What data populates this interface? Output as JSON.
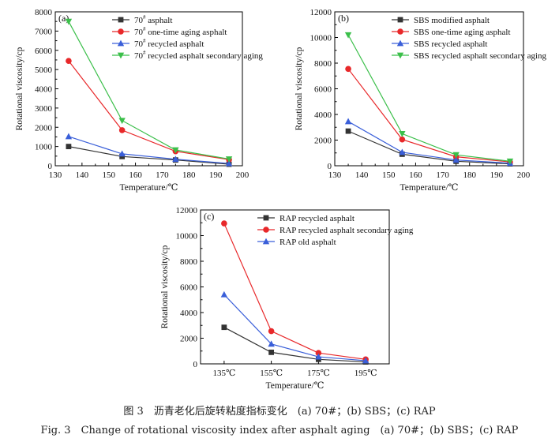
{
  "figure": {
    "caption_cn": "图 3　沥青老化后旋转粘度指标变化　(a) 70#；(b) SBS；(c) RAP",
    "caption_en": "Fig. 3　Change of rotational viscosity index after asphalt aging　(a) 70#；(b) SBS；(c) RAP"
  },
  "colors": {
    "black": "#333333",
    "red": "#e8282a",
    "blue": "#3a5fd9",
    "green": "#3bbf4a"
  },
  "chart_data": [
    {
      "type": "line",
      "panel_label": "(a)",
      "xlabel": "Temperature/℃",
      "ylabel": "Rotational viscosity/cp",
      "xlim": [
        130,
        200
      ],
      "ylim": [
        0,
        8000
      ],
      "xticks": [
        130,
        140,
        150,
        160,
        170,
        180,
        190,
        200
      ],
      "yticks": [
        0,
        1000,
        2000,
        3000,
        4000,
        5000,
        6000,
        7000,
        8000
      ],
      "x": [
        135,
        155,
        175,
        195
      ],
      "legend_position": "top-right",
      "grid": false,
      "series": [
        {
          "name": "70# asphalt",
          "color": "black",
          "marker": "square",
          "values": [
            1000,
            480,
            300,
            80
          ]
        },
        {
          "name": "70# one-time aging asphalt",
          "color": "red",
          "marker": "circle",
          "values": [
            5450,
            1850,
            750,
            320
          ]
        },
        {
          "name": "70# recycled asphalt",
          "color": "blue",
          "marker": "triangle-up",
          "values": [
            1520,
            620,
            340,
            120
          ]
        },
        {
          "name": "70# recycled asphalt secondary aging",
          "color": "green",
          "marker": "triangle-down",
          "values": [
            7500,
            2350,
            820,
            350
          ]
        }
      ]
    },
    {
      "type": "line",
      "panel_label": "(b)",
      "xlabel": "Temperature/℃",
      "ylabel": "Rotational viscosity/cp",
      "xlim": [
        130,
        200
      ],
      "ylim": [
        0,
        12000
      ],
      "xticks": [
        130,
        140,
        150,
        160,
        170,
        180,
        190,
        200
      ],
      "yticks": [
        0,
        2000,
        4000,
        6000,
        8000,
        10000,
        12000
      ],
      "x": [
        135,
        155,
        175,
        195
      ],
      "legend_position": "top-right",
      "grid": false,
      "series": [
        {
          "name": "SBS modified asphalt",
          "color": "black",
          "marker": "square",
          "values": [
            2700,
            900,
            350,
            150
          ]
        },
        {
          "name": "SBS one-time aging asphalt",
          "color": "red",
          "marker": "circle",
          "values": [
            7550,
            2050,
            700,
            300
          ]
        },
        {
          "name": "SBS recycled asphalt",
          "color": "blue",
          "marker": "triangle-up",
          "values": [
            3450,
            1050,
            450,
            200
          ]
        },
        {
          "name": "SBS recycled asphalt secondary aging",
          "color": "green",
          "marker": "triangle-down",
          "values": [
            10200,
            2500,
            850,
            350
          ]
        }
      ]
    },
    {
      "type": "line",
      "panel_label": "(c)",
      "xlabel": "Temperature/℃",
      "ylabel": "Rotational viscosity/cp",
      "categories": [
        "135℃",
        "155℃",
        "175℃",
        "195℃"
      ],
      "ylim": [
        0,
        12000
      ],
      "yticks": [
        0,
        2000,
        4000,
        6000,
        8000,
        10000,
        12000
      ],
      "legend_position": "top-right",
      "grid": false,
      "series": [
        {
          "name": "RAP recycled asphalt",
          "color": "black",
          "marker": "square",
          "values": [
            2850,
            900,
            350,
            150
          ]
        },
        {
          "name": "RAP recycled asphalt secondary aging",
          "color": "red",
          "marker": "circle",
          "values": [
            10950,
            2550,
            850,
            350
          ]
        },
        {
          "name": "RAP old asphalt",
          "color": "blue",
          "marker": "triangle-up",
          "values": [
            5400,
            1550,
            550,
            250
          ]
        }
      ]
    }
  ]
}
